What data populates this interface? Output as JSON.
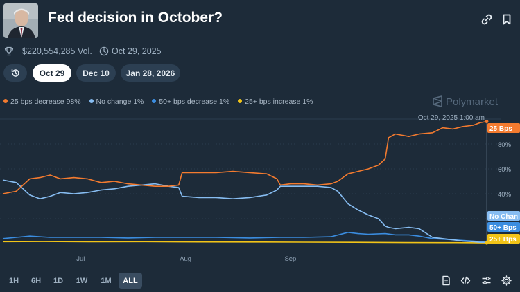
{
  "header": {
    "title": "Fed decision in October?",
    "volume": "$220,554,285 Vol.",
    "end_date": "Oct 29, 2025"
  },
  "date_tabs": [
    {
      "label": "Oct 29",
      "active": true
    },
    {
      "label": "Dec 10",
      "active": false
    },
    {
      "label": "Jan 28, 2026",
      "active": false
    }
  ],
  "brand": "Polymarket",
  "time_ranges": [
    {
      "label": "1H",
      "active": false
    },
    {
      "label": "6H",
      "active": false
    },
    {
      "label": "1D",
      "active": false
    },
    {
      "label": "1W",
      "active": false
    },
    {
      "label": "1M",
      "active": false
    },
    {
      "label": "ALL",
      "active": true
    }
  ],
  "icons": {
    "header": [
      "link-icon",
      "bookmark-icon"
    ],
    "meta": [
      "trophy-icon",
      "clock-icon"
    ],
    "toolbar": [
      "document-icon",
      "code-icon",
      "sliders-icon",
      "gear-icon"
    ]
  },
  "chart_data": {
    "type": "line",
    "x_start": "2025-06-08",
    "x_end": "2025-10-29",
    "x_ticks": [
      "Jul",
      "Aug",
      "Sep"
    ],
    "y_ticks": [
      "80%",
      "60%",
      "40%"
    ],
    "ylim": [
      0,
      100
    ],
    "hover_label": "Oct 29, 2025 1:00 am",
    "legend_position": "top-left",
    "grid": true,
    "series": [
      {
        "name": "25 bps decrease",
        "legend": "25 bps decrease 98%",
        "end_label": "25 Bps",
        "color": "#f47b2f",
        "points": [
          [
            "2025-06-08",
            40
          ],
          [
            "2025-06-12",
            42
          ],
          [
            "2025-06-16",
            52
          ],
          [
            "2025-06-19",
            53
          ],
          [
            "2025-06-22",
            55
          ],
          [
            "2025-06-25",
            52
          ],
          [
            "2025-06-29",
            53
          ],
          [
            "2025-07-03",
            52
          ],
          [
            "2025-07-07",
            49
          ],
          [
            "2025-07-11",
            50
          ],
          [
            "2025-07-15",
            48
          ],
          [
            "2025-07-19",
            47
          ],
          [
            "2025-07-23",
            46
          ],
          [
            "2025-07-27",
            46
          ],
          [
            "2025-07-30",
            47
          ],
          [
            "2025-07-31",
            57
          ],
          [
            "2025-08-05",
            57
          ],
          [
            "2025-08-10",
            57
          ],
          [
            "2025-08-15",
            58
          ],
          [
            "2025-08-20",
            57
          ],
          [
            "2025-08-25",
            56
          ],
          [
            "2025-08-28",
            52
          ],
          [
            "2025-08-29",
            47
          ],
          [
            "2025-09-01",
            48
          ],
          [
            "2025-09-05",
            48
          ],
          [
            "2025-09-09",
            47
          ],
          [
            "2025-09-13",
            48
          ],
          [
            "2025-09-15",
            50
          ],
          [
            "2025-09-18",
            56
          ],
          [
            "2025-09-21",
            58
          ],
          [
            "2025-09-24",
            60
          ],
          [
            "2025-09-27",
            63
          ],
          [
            "2025-09-29",
            68
          ],
          [
            "2025-09-30",
            85
          ],
          [
            "2025-10-02",
            88
          ],
          [
            "2025-10-06",
            86
          ],
          [
            "2025-10-09",
            88
          ],
          [
            "2025-10-13",
            89
          ],
          [
            "2025-10-16",
            93
          ],
          [
            "2025-10-19",
            92
          ],
          [
            "2025-10-22",
            94
          ],
          [
            "2025-10-25",
            95
          ],
          [
            "2025-10-27",
            97
          ],
          [
            "2025-10-29",
            98
          ]
        ]
      },
      {
        "name": "No change",
        "legend": "No change 1%",
        "end_label": "No Chan",
        "color": "#87bdf2",
        "points": [
          [
            "2025-06-08",
            51
          ],
          [
            "2025-06-12",
            49
          ],
          [
            "2025-06-16",
            39
          ],
          [
            "2025-06-19",
            36
          ],
          [
            "2025-06-22",
            38
          ],
          [
            "2025-06-25",
            41
          ],
          [
            "2025-06-29",
            40
          ],
          [
            "2025-07-03",
            41
          ],
          [
            "2025-07-07",
            43
          ],
          [
            "2025-07-11",
            44
          ],
          [
            "2025-07-15",
            46
          ],
          [
            "2025-07-19",
            47
          ],
          [
            "2025-07-23",
            48
          ],
          [
            "2025-07-27",
            46
          ],
          [
            "2025-07-30",
            45
          ],
          [
            "2025-07-31",
            38
          ],
          [
            "2025-08-05",
            37
          ],
          [
            "2025-08-10",
            37
          ],
          [
            "2025-08-15",
            36
          ],
          [
            "2025-08-20",
            37
          ],
          [
            "2025-08-25",
            39
          ],
          [
            "2025-08-28",
            43
          ],
          [
            "2025-08-29",
            46
          ],
          [
            "2025-09-01",
            46
          ],
          [
            "2025-09-05",
            46
          ],
          [
            "2025-09-09",
            46
          ],
          [
            "2025-09-13",
            45
          ],
          [
            "2025-09-15",
            42
          ],
          [
            "2025-09-18",
            32
          ],
          [
            "2025-09-21",
            27
          ],
          [
            "2025-09-24",
            23
          ],
          [
            "2025-09-27",
            20
          ],
          [
            "2025-09-29",
            14
          ],
          [
            "2025-09-30",
            13
          ],
          [
            "2025-10-02",
            12
          ],
          [
            "2025-10-06",
            13
          ],
          [
            "2025-10-09",
            12
          ],
          [
            "2025-10-13",
            5
          ],
          [
            "2025-10-16",
            4
          ],
          [
            "2025-10-19",
            3
          ],
          [
            "2025-10-22",
            2
          ],
          [
            "2025-10-25",
            1.5
          ],
          [
            "2025-10-27",
            1
          ],
          [
            "2025-10-29",
            1
          ]
        ]
      },
      {
        "name": "50+ bps decrease",
        "legend": "50+ bps decrease 1%",
        "end_label": "50+ Bps",
        "color": "#3b8de0",
        "points": [
          [
            "2025-06-08",
            4
          ],
          [
            "2025-06-12",
            5
          ],
          [
            "2025-06-16",
            6
          ],
          [
            "2025-06-22",
            5
          ],
          [
            "2025-06-29",
            5
          ],
          [
            "2025-07-07",
            5
          ],
          [
            "2025-07-15",
            4.5
          ],
          [
            "2025-07-23",
            5
          ],
          [
            "2025-07-31",
            5
          ],
          [
            "2025-08-10",
            5
          ],
          [
            "2025-08-20",
            4.5
          ],
          [
            "2025-08-29",
            5
          ],
          [
            "2025-09-05",
            5
          ],
          [
            "2025-09-13",
            5.5
          ],
          [
            "2025-09-18",
            9
          ],
          [
            "2025-09-21",
            8
          ],
          [
            "2025-09-24",
            7.5
          ],
          [
            "2025-09-29",
            8
          ],
          [
            "2025-10-02",
            7
          ],
          [
            "2025-10-06",
            7
          ],
          [
            "2025-10-09",
            6
          ],
          [
            "2025-10-13",
            4
          ],
          [
            "2025-10-19",
            3
          ],
          [
            "2025-10-25",
            2
          ],
          [
            "2025-10-29",
            1
          ]
        ]
      },
      {
        "name": "25+ bps increase",
        "legend": "25+ bps increase 1%",
        "end_label": "25+ Bps",
        "color": "#f2c418",
        "points": [
          [
            "2025-06-08",
            1.5
          ],
          [
            "2025-06-20",
            1.6
          ],
          [
            "2025-07-05",
            1.4
          ],
          [
            "2025-07-20",
            1.5
          ],
          [
            "2025-08-05",
            1.3
          ],
          [
            "2025-08-20",
            1.2
          ],
          [
            "2025-09-05",
            1.1
          ],
          [
            "2025-09-20",
            1
          ],
          [
            "2025-10-05",
            0.8
          ],
          [
            "2025-10-20",
            0.7
          ],
          [
            "2025-10-29",
            0.5
          ]
        ]
      }
    ]
  }
}
